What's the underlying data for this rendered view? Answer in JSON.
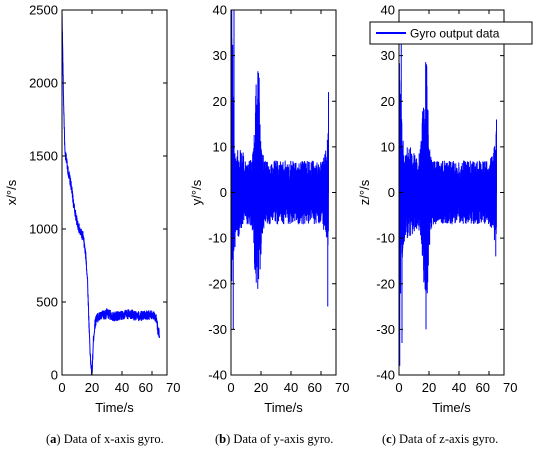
{
  "legend": {
    "label": "Gyro output data",
    "color": "#0000ff"
  },
  "chart_data": [
    {
      "type": "line",
      "panel": "x-axis",
      "xlabel": "Time/s",
      "ylabel": "x/°/s",
      "xlim": [
        0,
        70
      ],
      "ylim": [
        0,
        2500
      ],
      "xticks": [
        "0",
        "20",
        "40",
        "60",
        "70"
      ],
      "yticks": [
        "0",
        "500",
        "1000",
        "1500",
        "2000",
        "2500"
      ],
      "series": [
        {
          "name": "Gyro output data",
          "color": "#0000ff",
          "x": [
            0,
            0.5,
            1,
            2,
            3,
            4,
            5,
            6,
            7,
            8,
            10,
            12,
            14,
            15,
            16,
            17,
            18,
            19,
            20,
            21,
            22,
            23,
            25,
            28,
            30,
            35,
            40,
            45,
            50,
            55,
            60,
            63,
            64,
            65
          ],
          "y": [
            2500,
            2200,
            1900,
            1500,
            1480,
            1400,
            1350,
            1300,
            1230,
            1150,
            1050,
            980,
            950,
            880,
            800,
            650,
            350,
            100,
            0,
            250,
            350,
            390,
            400,
            410,
            420,
            400,
            410,
            420,
            400,
            410,
            410,
            390,
            300,
            280
          ],
          "noise": 35
        }
      ]
    },
    {
      "type": "line",
      "panel": "y-axis",
      "xlabel": "Time/s",
      "ylabel": "y/°/s",
      "xlim": [
        0,
        70
      ],
      "ylim": [
        -40,
        40
      ],
      "xticks": [
        "0",
        "20",
        "40",
        "60",
        "70"
      ],
      "yticks": [
        "-40",
        "-30",
        "-20",
        "-10",
        "0",
        "10",
        "20",
        "30",
        "40"
      ],
      "series": [
        {
          "name": "Gyro output data",
          "color": "#0000ff",
          "x": [
            0,
            1,
            2,
            3,
            5,
            8,
            10,
            12,
            14,
            15,
            16,
            17,
            18,
            19,
            20,
            21,
            22,
            23,
            25,
            30,
            40,
            50,
            60,
            63,
            65
          ],
          "y": [
            0,
            10,
            0,
            -2,
            0,
            1,
            0,
            0,
            0,
            0,
            0,
            2,
            5,
            3,
            -2,
            0,
            0,
            0,
            0,
            0,
            0,
            0,
            0,
            0,
            0
          ],
          "envelope": [
            35,
            28,
            14,
            10,
            10,
            8,
            7,
            7,
            8,
            12,
            18,
            24,
            26,
            22,
            12,
            9,
            8,
            7,
            7,
            7,
            7,
            7,
            7,
            9,
            14
          ],
          "spikes": [
            [
              0.5,
              40
            ],
            [
              1.5,
              -30
            ],
            [
              2,
              40
            ],
            [
              65,
              22
            ],
            [
              64.5,
              -25
            ]
          ]
        }
      ]
    },
    {
      "type": "line",
      "panel": "z-axis",
      "xlabel": "Time/s",
      "ylabel": "z/°/s",
      "xlim": [
        0,
        70
      ],
      "ylim": [
        -40,
        40
      ],
      "xticks": [
        "0",
        "20",
        "40",
        "60",
        "70"
      ],
      "yticks": [
        "-40",
        "-30",
        "-20",
        "-10",
        "0",
        "10",
        "20",
        "30",
        "40"
      ],
      "series": [
        {
          "name": "Gyro output data",
          "color": "#0000ff",
          "x": [
            0,
            1,
            2,
            3,
            5,
            8,
            10,
            12,
            14,
            15,
            16,
            17,
            18,
            19,
            20,
            21,
            22,
            23,
            25,
            30,
            40,
            50,
            60,
            63,
            65
          ],
          "y": [
            -5,
            5,
            0,
            0,
            0,
            0,
            0,
            0,
            0,
            0,
            0,
            2,
            4,
            2,
            -2,
            0,
            0,
            0,
            0,
            0,
            0,
            0,
            0,
            0,
            0
          ],
          "envelope": [
            32,
            28,
            16,
            12,
            10,
            10,
            9,
            8,
            9,
            14,
            20,
            25,
            27,
            24,
            12,
            9,
            8,
            7,
            7,
            7,
            7,
            7,
            7,
            9,
            14
          ],
          "spikes": [
            [
              0.5,
              -38
            ],
            [
              1.5,
              37
            ],
            [
              2,
              -33
            ],
            [
              65,
              16
            ],
            [
              64.5,
              -14
            ],
            [
              18,
              -30
            ]
          ]
        }
      ]
    }
  ],
  "captions": [
    {
      "label": "a",
      "text": " Data of x-axis gyro."
    },
    {
      "label": "b",
      "text": " Data of y-axis gyro."
    },
    {
      "label": "c",
      "text": " Data of z-axis gyro."
    }
  ]
}
